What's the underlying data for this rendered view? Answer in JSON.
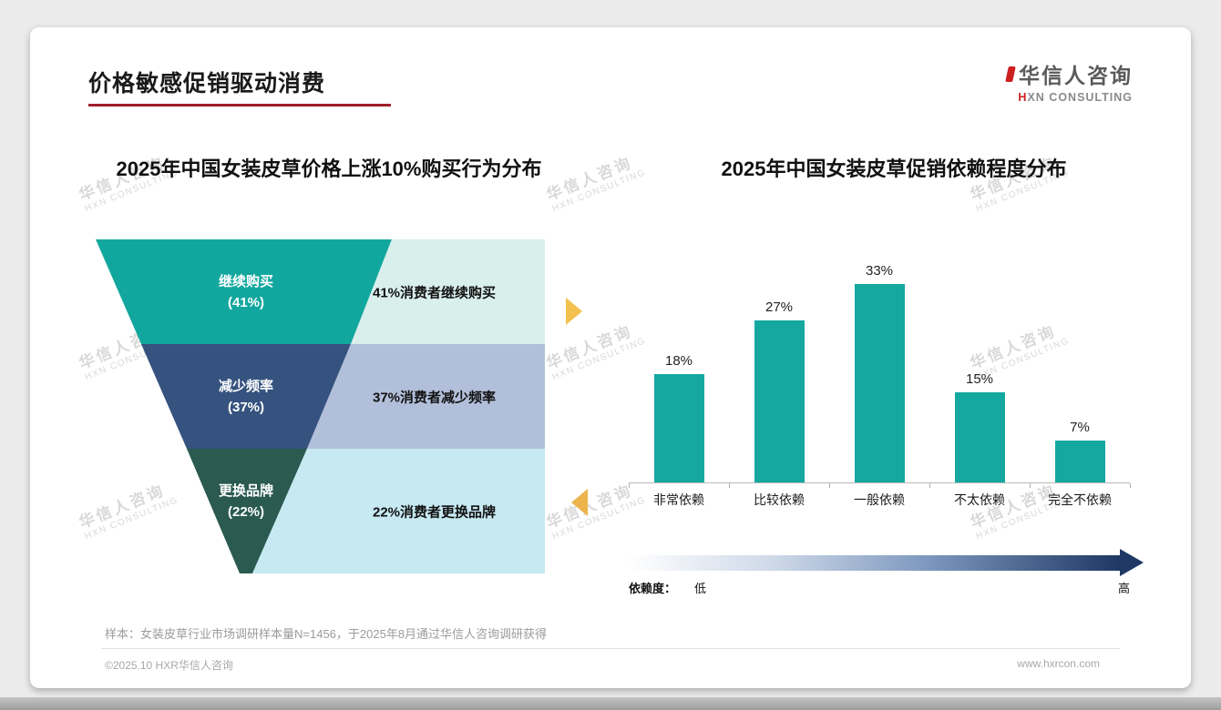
{
  "page": {
    "title": "价格敏感促销驱动消费",
    "sample_note": "样本：女装皮草行业市场调研样本量N=1456，于2025年8月通过华信人咨询调研获得",
    "footer_left": "©2025.10 HXR华信人咨询",
    "footer_right": "www.hxrcon.com"
  },
  "logo": {
    "cn": "华信人咨询",
    "en": "HXN CONSULTING"
  },
  "watermark": {
    "line1": "华信人咨询",
    "line2": "HXN CONSULTING"
  },
  "colors": {
    "accent_red": "#9e1f2a",
    "logo_red": "#cc1f1f",
    "arrow_yellow_top": "#f2c14e",
    "arrow_yellow_bottom": "#edb44d",
    "gradient_mid": "#7a95bd",
    "gradient_dark": "#1f3864",
    "axis_gray": "#b9b9b9"
  },
  "chart_data": [
    {
      "type": "funnel",
      "title": "2025年中国女装皮草价格上涨10%购买行为分布",
      "categories": [
        "继续购买",
        "减少频率",
        "更换品牌"
      ],
      "values": [
        41,
        37,
        22
      ],
      "pct_labels": [
        "(41%)",
        "(37%)",
        "(22%)"
      ],
      "annotations": [
        "41%消费者继续购买",
        "37%消费者减少频率",
        "22%消费者更换品牌"
      ],
      "segment_colors": [
        "#12a79e",
        "#36537f",
        "#2a5a50"
      ],
      "annotation_colors": [
        "#d9efec",
        "#b2bfda",
        "#c6e9f2"
      ]
    },
    {
      "type": "bar",
      "title": "2025年中国女装皮草促销依赖程度分布",
      "categories": [
        "非常依赖",
        "比较依赖",
        "一般依赖",
        "不太依赖",
        "完全不依赖"
      ],
      "values": [
        18,
        27,
        33,
        15,
        7
      ],
      "ylim": [
        0,
        40
      ],
      "bar_color": "#14a8a0",
      "legend": "none",
      "grid": false,
      "axis_note": {
        "label": "依赖度：",
        "low": "低",
        "high": "高"
      }
    }
  ]
}
